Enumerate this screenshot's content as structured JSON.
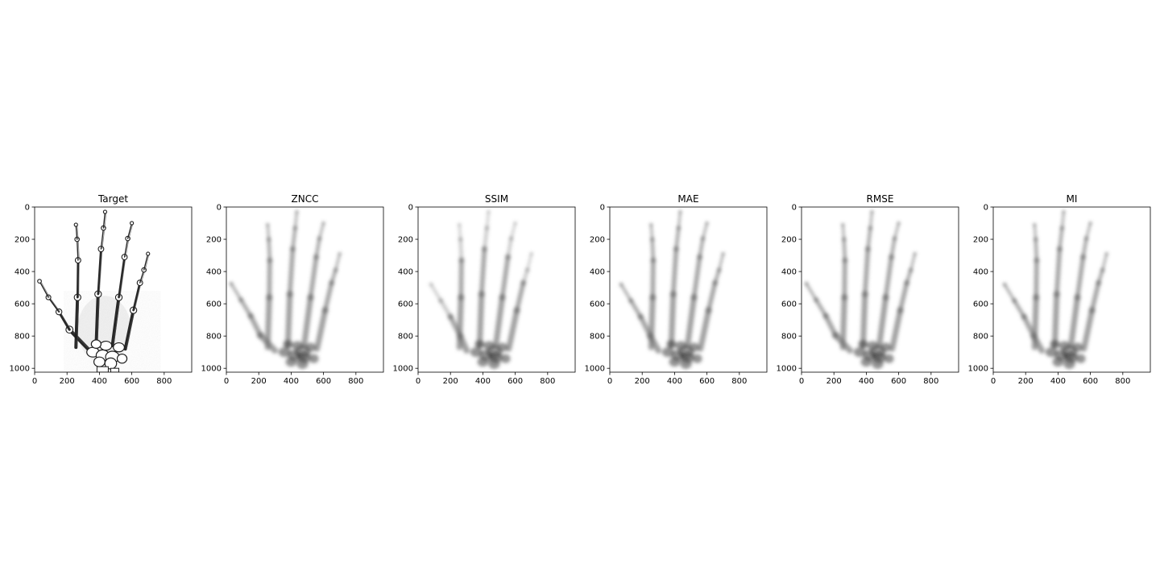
{
  "panels": [
    {
      "title": "Target",
      "style": "edge"
    },
    {
      "title": "ZNCC",
      "style": "soft",
      "thumb": [
        -20,
        35
      ]
    },
    {
      "title": "SSIM",
      "style": "soft",
      "thumb": [
        30,
        40
      ],
      "finger_fade": true
    },
    {
      "title": "MAE",
      "style": "soft",
      "thumb": [
        20,
        40
      ]
    },
    {
      "title": "RMSE",
      "style": "soft",
      "thumb": [
        -20,
        35
      ]
    },
    {
      "title": "MI",
      "style": "soft",
      "thumb": [
        20,
        40
      ]
    }
  ],
  "axes": {
    "xlim": [
      0,
      970
    ],
    "ylim": [
      1024,
      0
    ],
    "xticks": [
      0,
      200,
      400,
      600,
      800
    ],
    "yticks": [
      0,
      200,
      400,
      600,
      800,
      1000
    ],
    "xtick_labels": [
      "0",
      "200",
      "400",
      "600",
      "800"
    ],
    "ytick_labels": [
      "0",
      "200",
      "400",
      "600",
      "800",
      "1000"
    ]
  },
  "colors": {
    "background": "#ffffff",
    "frame": "#000000",
    "bone_target": "#1e1e1e",
    "bone_soft": "#6f6f6f"
  }
}
